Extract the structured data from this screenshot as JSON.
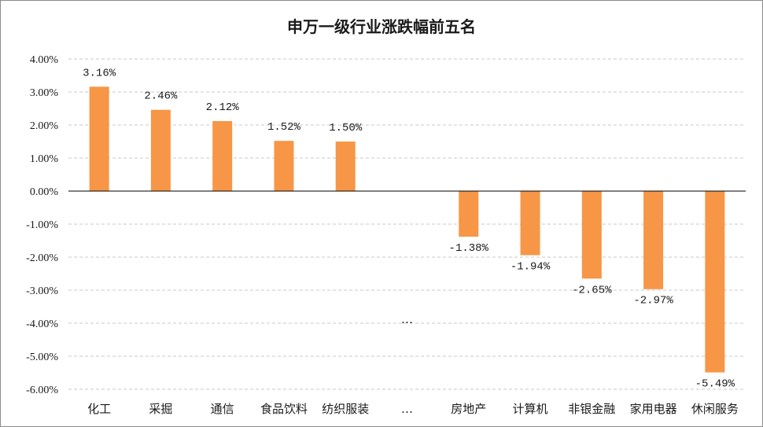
{
  "chart_data": {
    "type": "bar",
    "title": "申万一级行业涨跌幅前五名",
    "categories": [
      "化工",
      "采掘",
      "通信",
      "食品饮料",
      "纺织服装",
      "…",
      "房地产",
      "计算机",
      "非银金融",
      "家用电器",
      "休闲服务"
    ],
    "values": [
      3.16,
      2.46,
      2.12,
      1.52,
      1.5,
      null,
      -1.38,
      -1.94,
      -2.65,
      -2.97,
      -5.49
    ],
    "data_labels": [
      "3.16%",
      "2.46%",
      "2.12%",
      "1.52%",
      "1.50%",
      "",
      "-1.38%",
      "-1.94%",
      "-2.65%",
      "-2.97%",
      "-5.49%"
    ],
    "gap_marker": "…",
    "yticks": [
      "4.00%",
      "3.00%",
      "2.00%",
      "1.00%",
      "0.00%",
      "-1.00%",
      "-2.00%",
      "-3.00%",
      "-4.00%",
      "-5.00%",
      "-6.00%"
    ],
    "ylim": [
      -6,
      4
    ],
    "grid": true,
    "legend": "none",
    "bar_color": "#F79646"
  }
}
